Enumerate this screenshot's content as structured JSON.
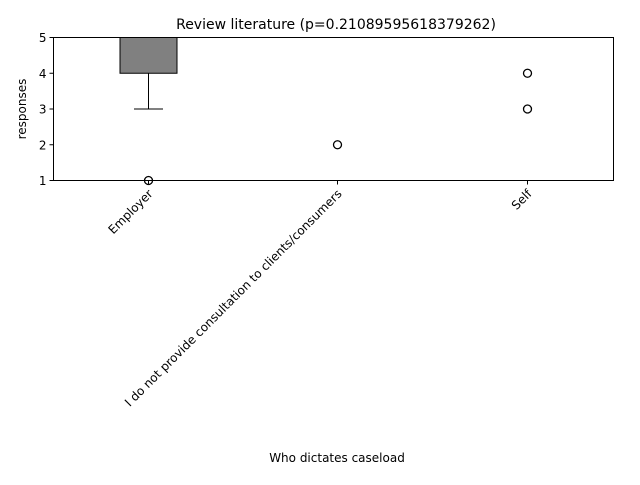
{
  "chart_data": {
    "type": "box",
    "title": "Review literature (p=0.21089595618379262)",
    "xlabel": "Who dictates caseload",
    "ylabel": "responses",
    "ylim": [
      1,
      5
    ],
    "yticks": [
      1,
      2,
      3,
      4,
      5
    ],
    "grid": false,
    "legend": "none",
    "box_color": "#808080",
    "categories": [
      "Employer",
      "I do not provide consultation to clients/consumers",
      "Self"
    ],
    "boxes": [
      {
        "category": "Employer",
        "whisker_low": 3,
        "q1": 4,
        "median": 5,
        "q3": 5,
        "whisker_high": 5,
        "outliers": [
          1
        ]
      },
      {
        "category": "I do not provide consultation to clients/consumers",
        "whisker_low": 5,
        "q1": 5,
        "median": 5,
        "q3": 5,
        "whisker_high": 5,
        "outliers": [
          2
        ]
      },
      {
        "category": "Self",
        "whisker_low": 5,
        "q1": 5,
        "median": 5,
        "q3": 5,
        "whisker_high": 5,
        "outliers": [
          3,
          4
        ]
      }
    ]
  }
}
